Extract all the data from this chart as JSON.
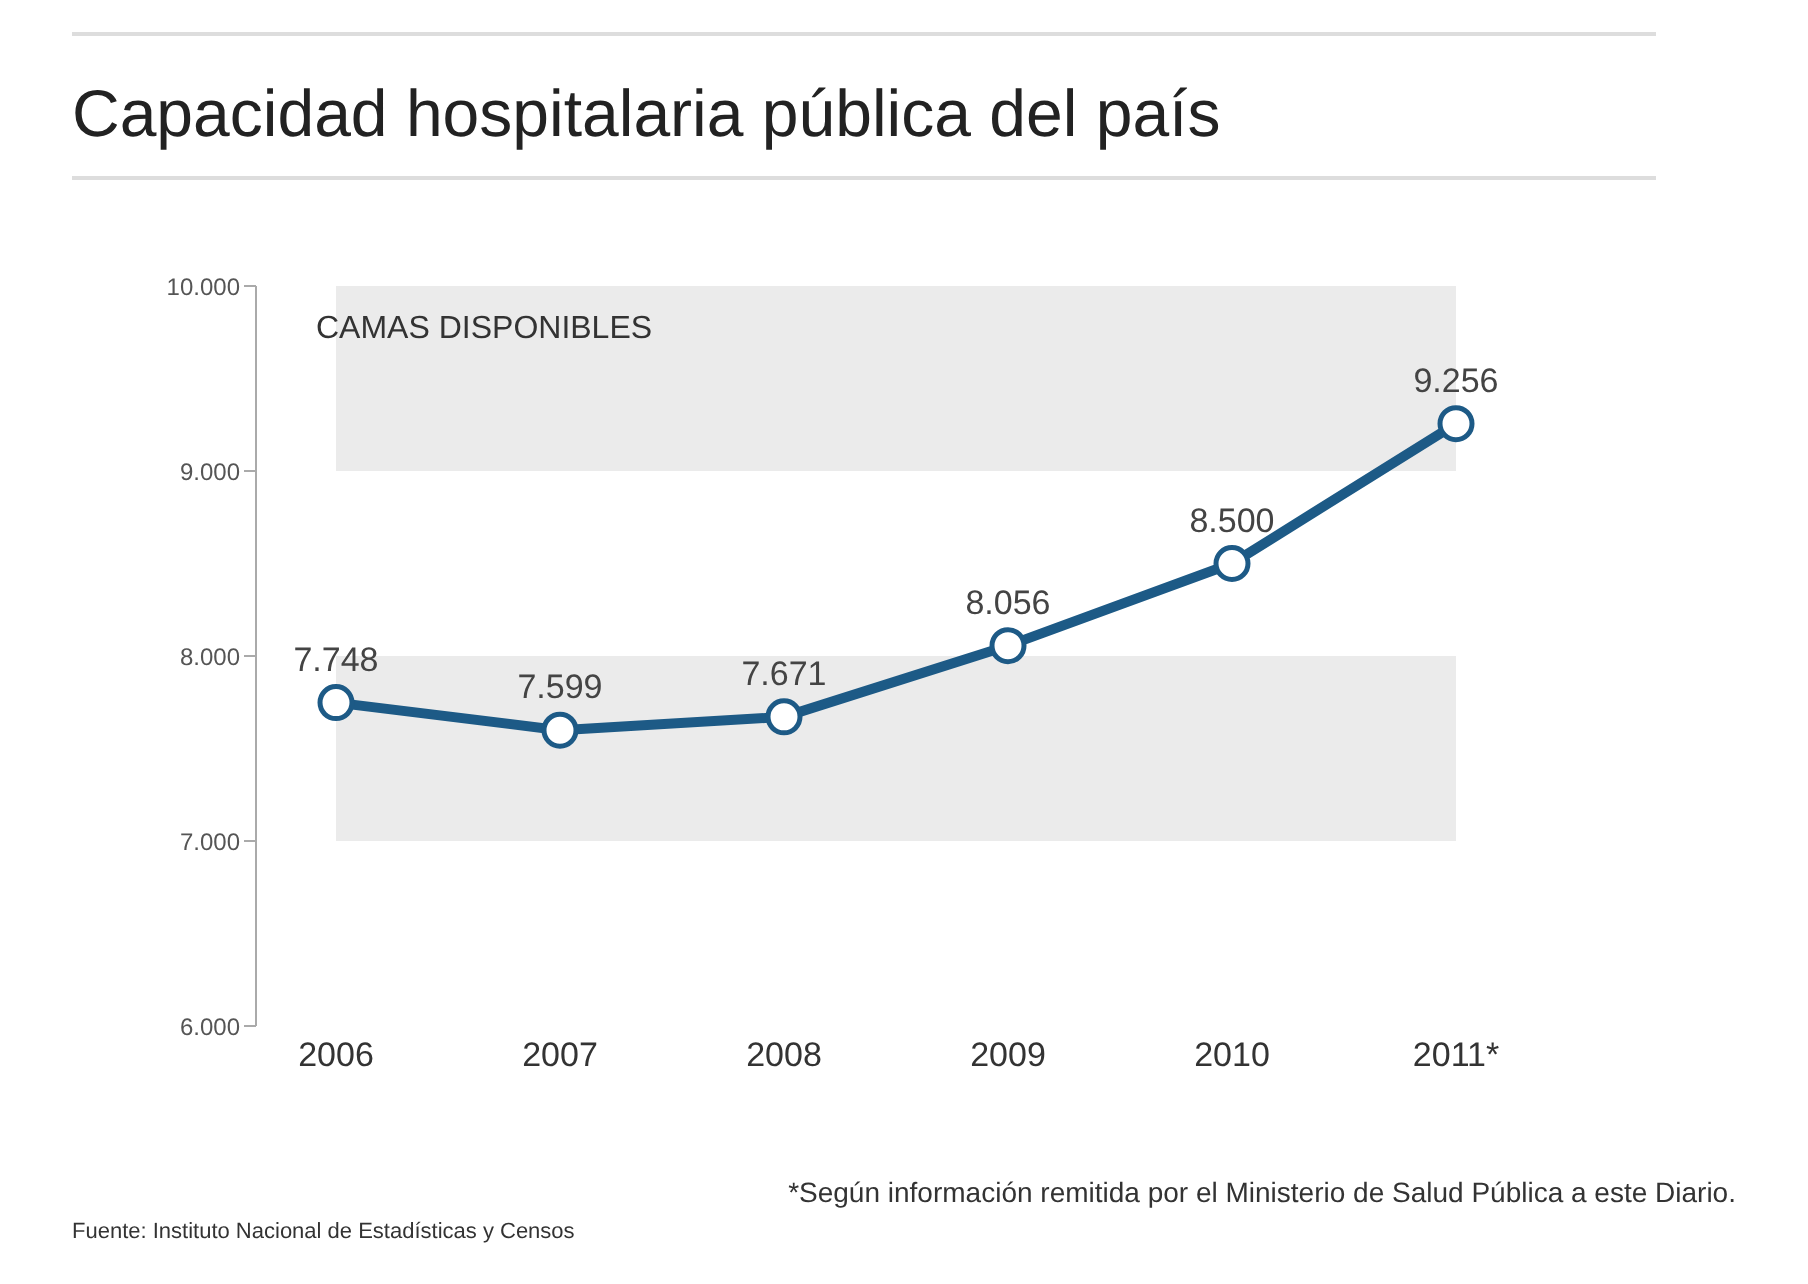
{
  "chart_data": {
    "type": "line",
    "title": "Capacidad hospitalaria pública del país",
    "ylabel": "CAMAS DISPONIBLES",
    "categories": [
      "2006",
      "2007",
      "2008",
      "2009",
      "2010",
      "2011*"
    ],
    "series": [
      {
        "color": "#1d5a86",
        "values": [
          7748,
          7599,
          7671,
          8056,
          8500,
          9256
        ],
        "value_labels": [
          "7.748",
          "7.599",
          "7.671",
          "8.056",
          "8.500",
          "9.256"
        ]
      }
    ],
    "ylim": [
      6000,
      10000
    ],
    "yticks": [
      {
        "value": 6000,
        "label": "6.000"
      },
      {
        "value": 7000,
        "label": "7.000"
      },
      {
        "value": 8000,
        "label": "8.000"
      },
      {
        "value": 9000,
        "label": "9.000"
      },
      {
        "value": 10000,
        "label": "10.000"
      }
    ],
    "bands": [
      {
        "axis": "y",
        "from": 7000,
        "to": 8000,
        "color": "#ebebeb"
      },
      {
        "axis": "y",
        "from": 9000,
        "to": 10000,
        "color": "#ebebeb"
      }
    ],
    "marker": "circle",
    "line_style": "solid",
    "annotations": [
      "*Según información remitida por el Ministerio de Salud Pública a este Diario.",
      "Fuente: Instituto Nacional de Estadísticas y Censos"
    ]
  }
}
